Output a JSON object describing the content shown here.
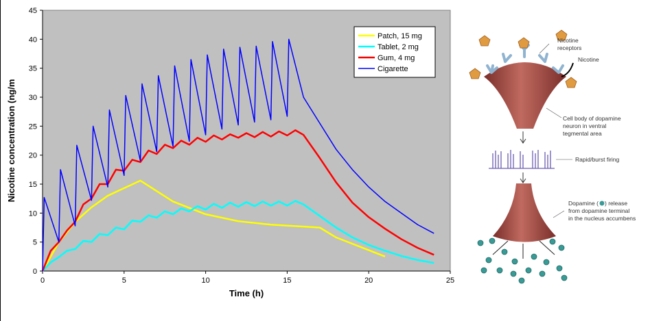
{
  "chart_data": {
    "type": "line",
    "xlabel": "Time (h)",
    "ylabel": "Nicotine concentration (ng/m",
    "xlim": [
      0,
      25
    ],
    "xticks": [
      0,
      5,
      10,
      15,
      20,
      25
    ],
    "ylim": [
      0,
      45
    ],
    "yticks": [
      0,
      5,
      10,
      15,
      20,
      25,
      30,
      35,
      40,
      45
    ],
    "legend": "upper right",
    "background": "#c0c0c0",
    "series": [
      {
        "name": "Patch, 15 mg",
        "color": "#ffff00",
        "x": [
          0,
          1,
          2,
          3,
          4,
          5,
          6,
          8,
          10,
          12,
          14,
          17,
          18,
          21
        ],
        "values": [
          0,
          5,
          8.5,
          11,
          13,
          14.3,
          15.6,
          12,
          9.8,
          8.6,
          8,
          7.5,
          5.8,
          2.5
        ]
      },
      {
        "name": "Tablet, 2 mg",
        "color": "#00ffff",
        "x": [
          0,
          0.5,
          1,
          1.5,
          2,
          2.5,
          3,
          3.5,
          4,
          4.5,
          5,
          5.5,
          6,
          6.5,
          7,
          7.5,
          8,
          8.5,
          9,
          9.5,
          10,
          10.5,
          11,
          11.5,
          12,
          12.5,
          13,
          13.5,
          14,
          14.5,
          15,
          15.5,
          16,
          17,
          18,
          19,
          20,
          21,
          22,
          23,
          24
        ],
        "values": [
          0,
          1.5,
          2.4,
          3.5,
          3.8,
          5.2,
          5,
          6.4,
          6.2,
          7.5,
          7.2,
          8.7,
          8.5,
          9.6,
          9.2,
          10.3,
          9.8,
          10.8,
          10.3,
          11.2,
          10.6,
          11.6,
          10.9,
          11.8,
          11.1,
          11.9,
          11.2,
          12,
          11.3,
          12,
          11.3,
          12.1,
          11.5,
          9.5,
          7.5,
          5.8,
          4.5,
          3.5,
          2.6,
          1.9,
          1.4
        ]
      },
      {
        "name": "Gum, 4 mg",
        "color": "#ff0000",
        "x": [
          0,
          0.5,
          1,
          1.5,
          2,
          2.5,
          3,
          3.5,
          4,
          4.5,
          5,
          5.5,
          6,
          6.5,
          7,
          7.5,
          8,
          8.5,
          9,
          9.5,
          10,
          10.5,
          11,
          11.5,
          12,
          12.5,
          13,
          13.5,
          14,
          14.5,
          15,
          15.5,
          16,
          17,
          18,
          19,
          20,
          21,
          22,
          23,
          24
        ],
        "values": [
          0,
          3.5,
          5,
          7,
          8.5,
          11.5,
          12.5,
          15,
          15,
          17.5,
          17.3,
          19.2,
          18.8,
          20.8,
          20.2,
          21.8,
          21.2,
          22.5,
          21.8,
          23,
          22.3,
          23.4,
          22.7,
          23.6,
          23,
          23.8,
          23.1,
          24,
          23.2,
          24.1,
          23.4,
          24.3,
          23.5,
          19.5,
          15.3,
          11.8,
          9.3,
          7.3,
          5.5,
          4,
          2.8
        ]
      },
      {
        "name": "Cigarette",
        "color": "#0000ff",
        "x": [
          0,
          0.1,
          1,
          1.1,
          2,
          2.1,
          3,
          3.1,
          4,
          4.1,
          5,
          5.1,
          6,
          6.1,
          7,
          7.1,
          8,
          8.1,
          9,
          9.1,
          10,
          10.1,
          11,
          11.1,
          12,
          12.1,
          13,
          13.1,
          14,
          14.1,
          15,
          15.1,
          16,
          17,
          18,
          19,
          20,
          21,
          22,
          23,
          24
        ],
        "values": [
          0,
          12.7,
          5,
          17.5,
          7.8,
          21.7,
          12.2,
          25,
          14.5,
          27.8,
          16.5,
          30.3,
          19,
          32.3,
          20.6,
          33.7,
          21.5,
          35.4,
          22.4,
          36.5,
          23.5,
          37.3,
          24.5,
          38.3,
          25.2,
          38.6,
          25.7,
          38.8,
          26.1,
          39.6,
          26.7,
          40,
          30,
          25.5,
          21,
          17.5,
          14.5,
          12,
          10,
          8,
          6.5
        ]
      }
    ]
  },
  "diagram": {
    "receptors_label": [
      "Nicotine",
      "receptors"
    ],
    "nicotine_label": "Nicotine",
    "cell_body_label": [
      "Cell body of dopamine",
      "neuron in ventral",
      "tegmental area"
    ],
    "firing_label": "Rapid/burst firing",
    "release_label": {
      "before": "Dopamine (",
      "after": ") release",
      "lines": [
        "from dopamine terminal",
        "in the nucleus accumbens"
      ]
    }
  }
}
